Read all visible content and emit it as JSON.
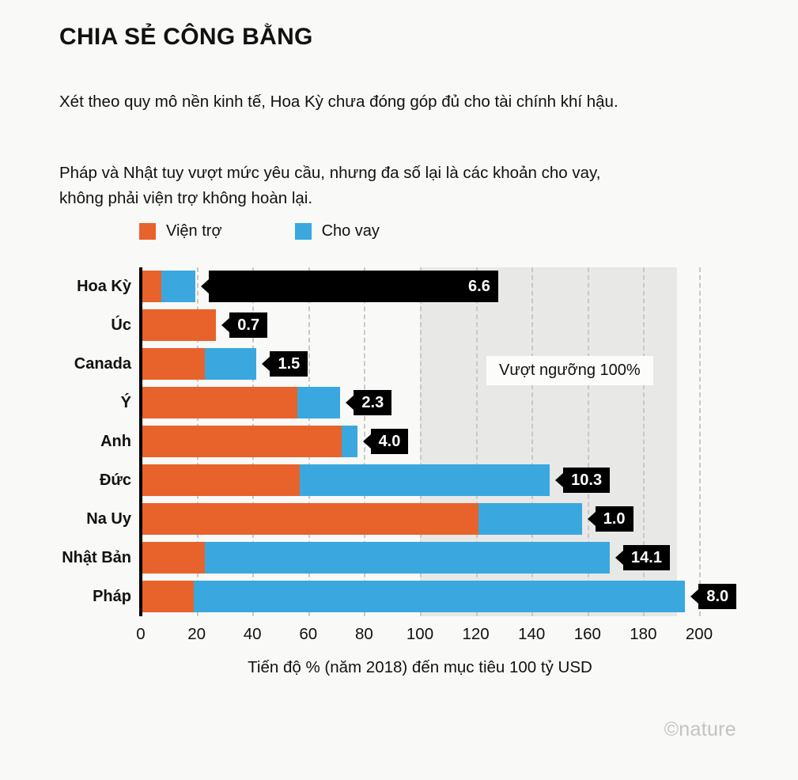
{
  "title": "CHIA SẺ CÔNG BẰNG",
  "paragraphs": [
    "Xét theo quy mô nền kinh tế, Hoa Kỳ chưa đóng góp đủ cho tài chính khí hậu.",
    "Pháp và Nhật tuy vượt mức yêu cầu, nhưng đa số lại là các khoản cho vay, không phải viện trợ không hoàn lại."
  ],
  "legend": [
    {
      "label": "Viện trợ",
      "color": "#e8622c"
    },
    {
      "label": "Cho vay",
      "color": "#3aa8de"
    }
  ],
  "footer": "©nature",
  "chart_data": {
    "type": "bar",
    "orientation": "horizontal",
    "stacked": true,
    "title": "CHIA SẺ CÔNG BẰNG",
    "xlabel": "Tiến độ % (năm 2018) đến mục tiêu 100 tỷ USD",
    "ylabel": "",
    "xlim": [
      0,
      210
    ],
    "xticks": [
      0,
      20,
      40,
      60,
      80,
      100,
      120,
      140,
      160,
      180,
      200
    ],
    "grid": "dashed-vertical",
    "legend_position": "top",
    "categories": [
      "Hoa Kỳ",
      "Úc",
      "Canada",
      "Ý",
      "Anh",
      "Đức",
      "Na Uy",
      "Nhật Bản",
      "Pháp"
    ],
    "series": [
      {
        "name": "Viện trợ",
        "color": "#e8622c",
        "values": [
          7.5,
          27,
          23,
          56,
          72,
          57,
          121,
          23,
          19
        ]
      },
      {
        "name": "Cho vay",
        "color": "#3aa8de",
        "values": [
          12,
          0,
          18.5,
          15.5,
          5.5,
          89.5,
          37,
          145,
          176
        ]
      }
    ],
    "bar_labels": [
      "6.6",
      "0.7",
      "1.5",
      "2.3",
      "4.0",
      "10.3",
      "1.0",
      "14.1",
      "8.0"
    ],
    "label_extend_to": [
      128,
      null,
      null,
      null,
      null,
      null,
      null,
      null,
      null
    ],
    "shade": {
      "from": 100,
      "to": 192,
      "label": "Vượt ngưỡng 100%"
    }
  }
}
